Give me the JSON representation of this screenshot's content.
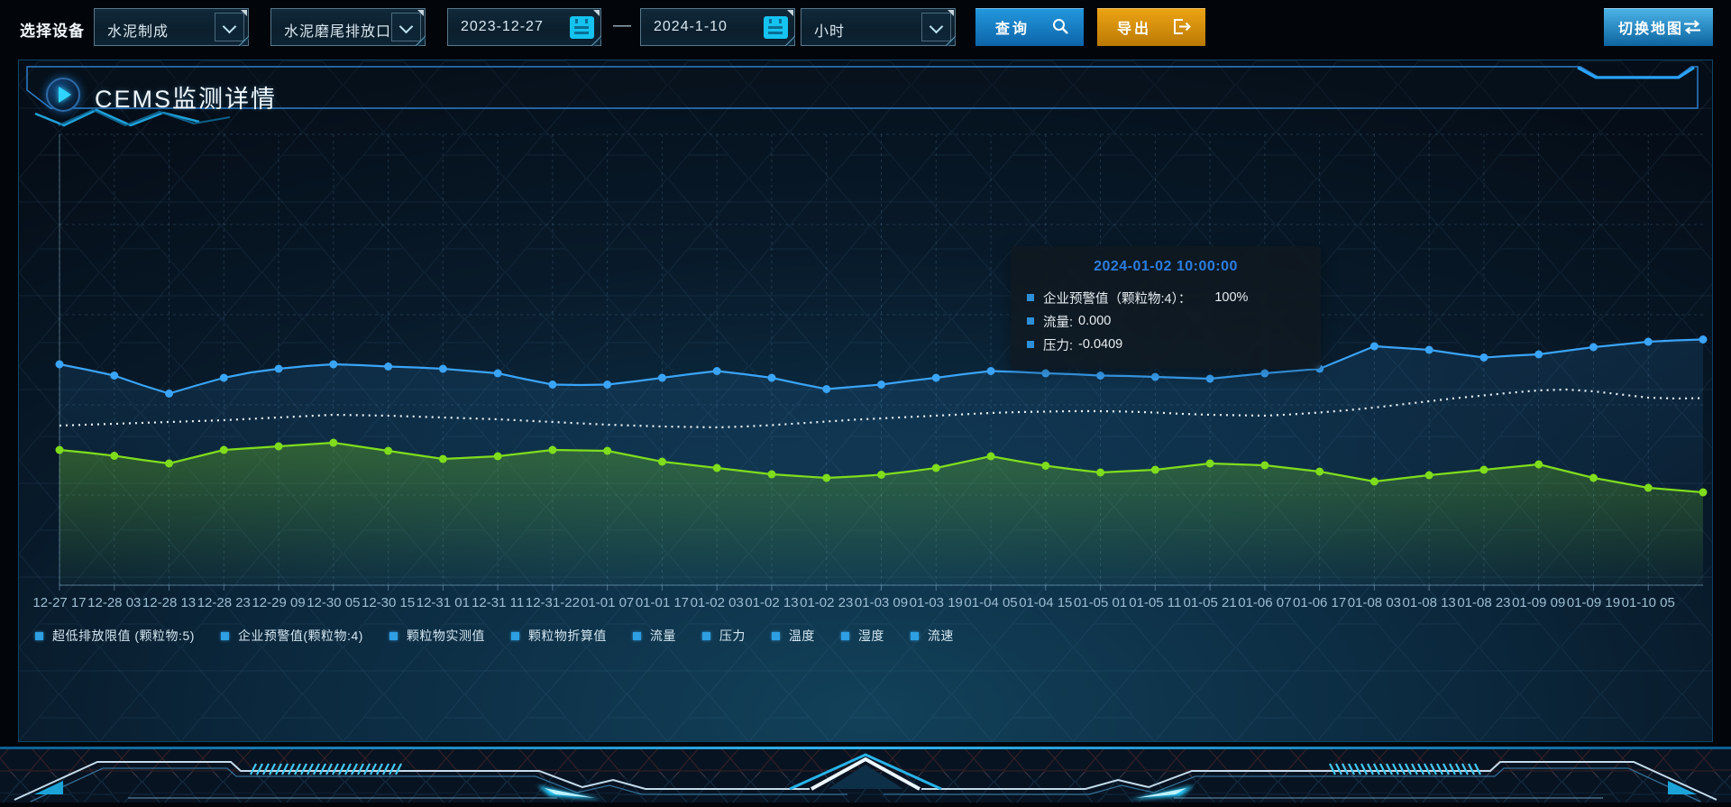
{
  "toolbar": {
    "device_label": "选择设备",
    "selects": [
      {
        "value": "水泥制成"
      },
      {
        "value": "水泥磨尾排放口"
      }
    ],
    "date_start": "2023-12-27",
    "date_separator": "—",
    "date_end": "2024-1-10",
    "interval_select": {
      "value": "小时"
    },
    "query_label": "查询",
    "export_label": "导出",
    "switch_map_label": "切换地图"
  },
  "panel": {
    "title": "CEMS监测详情"
  },
  "tooltip": {
    "title": "2024-01-02 10:00:00",
    "rows": [
      {
        "label": "企业预警值（颗粒物:4）：",
        "value": "100%"
      },
      {
        "label": "流量:",
        "value": "0.000"
      },
      {
        "label": "压力:",
        "value": "-0.0409"
      }
    ]
  },
  "chart_data": {
    "type": "line",
    "x_labels": [
      "12-27 17",
      "12-28 03",
      "12-28 13",
      "12-28 23",
      "12-29 09",
      "12-30 05",
      "12-30 15",
      "12-31 01",
      "12-31 11",
      "12-31-22",
      "01-01 07",
      "01-01 17",
      "01-02 03",
      "01-02 13",
      "01-02 23",
      "01-03 09",
      "01-03 19",
      "01-04 05",
      "01-04 15",
      "01-05 01",
      "01-05 11",
      "01-05 21",
      "01-06 07",
      "01-06 17",
      "01-08 03",
      "01-08 13",
      "01-08 23",
      "01-09 09",
      "01-09 19",
      "01-10 05"
    ],
    "points_per_label": 2,
    "y_axis": "unlabeled; values stored as percent of plot height from bottom",
    "grid": true,
    "legend_position": "bottom-left",
    "legend_marker_color": "#2d9fe2",
    "legend": [
      "超低排放限值 (颗粒物:5)",
      "企业预警值(颗粒物:4)",
      "颗粒物实测值",
      "颗粒物折算值",
      "流量",
      "压力",
      "温度",
      "湿度",
      "流速"
    ],
    "series": [
      {
        "name": "企业预警值（颗粒物:4）",
        "color": "#3aa4f8",
        "style": "solid",
        "markers": true,
        "area": true,
        "area_opacity": 0.13,
        "values": [
          49,
          47.8,
          46.5,
          44.4,
          42.5,
          44.3,
          46,
          47.2,
          48,
          48.6,
          49,
          48.8,
          48.5,
          48.3,
          48,
          47.5,
          47,
          45.7,
          44.5,
          44.4,
          44.5,
          45.2,
          46,
          46.8,
          47.5,
          46.8,
          46,
          44.7,
          43.5,
          44,
          44.5,
          45.3,
          46,
          46.8,
          47.5,
          47.3,
          47,
          46.8,
          46.5,
          46.4,
          46.2,
          46,
          45.8,
          46.4,
          47,
          47.5,
          48,
          50.5,
          53,
          52.6,
          52.2,
          51.3,
          50.5,
          50.9,
          51.2,
          52,
          52.8,
          53.4,
          54,
          54.3,
          54.5
        ]
      },
      {
        "name": "压力",
        "color": "#e8f3fa",
        "style": "dotted",
        "markers": false,
        "area": false,
        "area_opacity": 0,
        "values": [
          35.4,
          35.6,
          35.8,
          36,
          36.2,
          36.4,
          36.6,
          36.9,
          37.2,
          37.5,
          37.8,
          37.7,
          37.6,
          37.4,
          37.2,
          37,
          36.8,
          36.5,
          36.2,
          35.9,
          35.6,
          35.4,
          35.2,
          35.1,
          35,
          35.2,
          35.5,
          35.9,
          36.3,
          36.7,
          37,
          37.3,
          37.6,
          37.9,
          38.2,
          38.4,
          38.5,
          38.6,
          38.6,
          38.5,
          38.3,
          38,
          37.8,
          37.7,
          37.6,
          37.9,
          38.3,
          38.8,
          39.4,
          40.1,
          40.8,
          41.5,
          42.1,
          42.7,
          43.2,
          43.4,
          43,
          42.3,
          41.6,
          41.4,
          41.5
        ]
      },
      {
        "name": "流量",
        "color": "#7fdd1c",
        "style": "solid",
        "markers": true,
        "area": true,
        "area_opacity": 0.3,
        "values": [
          30,
          29.4,
          28.7,
          27.8,
          27,
          28.5,
          30,
          30.4,
          30.8,
          31.2,
          31.6,
          30.7,
          29.8,
          28.9,
          28,
          28.3,
          28.6,
          29.3,
          30,
          29.9,
          29.8,
          28.6,
          27.4,
          26.7,
          26,
          25.3,
          24.6,
          24.2,
          23.8,
          24.1,
          24.5,
          25.2,
          26,
          27.3,
          28.6,
          27.5,
          26.5,
          25.7,
          25,
          25.3,
          25.6,
          26.3,
          27,
          26.8,
          26.6,
          25.9,
          25.2,
          24.1,
          23,
          23.7,
          24.4,
          25,
          25.6,
          26.2,
          26.8,
          25.3,
          23.8,
          22.7,
          21.6,
          21.1,
          20.6
        ]
      }
    ]
  },
  "colors": {
    "accent_cyan": "#2ad0ff",
    "border_blue": "#2d7fca",
    "button_blue": "#1584cf",
    "button_orange": "#e79b10",
    "series_blue": "#3aa4f8",
    "series_green": "#7fdd1c",
    "series_white": "#e8f3fa",
    "tooltip_title_color": "#2b7de0",
    "axis_label_color": "#9dbdd2"
  }
}
